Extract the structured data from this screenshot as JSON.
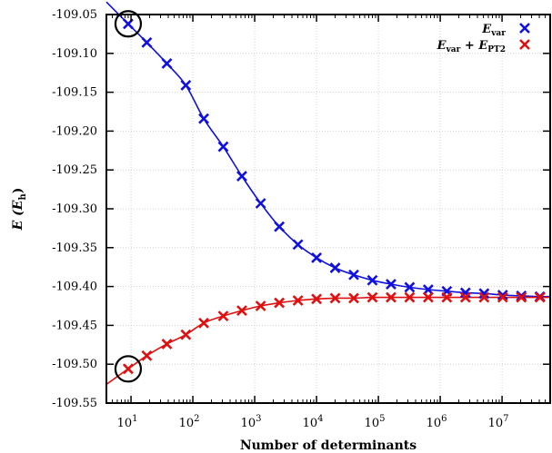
{
  "chart_data": {
    "type": "scatter",
    "xscale": "log",
    "xlim": [
      4,
      60000000
    ],
    "ylim": [
      -109.55,
      -109.05
    ],
    "grid": true,
    "legend_position": "top-right",
    "xlabel": "Number of determinants",
    "ylabel": "E (Eh)",
    "x_ticks": [
      10,
      100,
      1000,
      10000,
      100000,
      1000000,
      10000000
    ],
    "x_tick_labels": [
      {
        "base": "10",
        "exp": "1"
      },
      {
        "base": "10",
        "exp": "2"
      },
      {
        "base": "10",
        "exp": "3"
      },
      {
        "base": "10",
        "exp": "4"
      },
      {
        "base": "10",
        "exp": "5"
      },
      {
        "base": "10",
        "exp": "6"
      },
      {
        "base": "10",
        "exp": "7"
      }
    ],
    "y_ticks": [
      -109.05,
      -109.1,
      -109.15,
      -109.2,
      -109.25,
      -109.3,
      -109.35,
      -109.4,
      -109.45,
      -109.5,
      -109.55
    ],
    "y_tick_labels": [
      "-109.05",
      "-109.10",
      "-109.15",
      "-109.20",
      "-109.25",
      "-109.30",
      "-109.35",
      "-109.40",
      "-109.45",
      "-109.50",
      "-109.55"
    ],
    "series": [
      {
        "name": "E_var",
        "legend": {
          "main": "E",
          "sub": "var"
        },
        "color": "#1010e0",
        "marker": "x",
        "x": [
          9,
          18,
          38,
          77,
          150,
          310,
          620,
          1250,
          2500,
          5000,
          10000,
          20000,
          40000,
          80000,
          160000,
          320000,
          640000,
          1280000,
          2560000,
          5120000,
          10240000,
          20480000,
          40960000
        ],
        "y": [
          -109.062,
          -109.086,
          -109.113,
          -109.141,
          -109.184,
          -109.22,
          -109.258,
          -109.293,
          -109.323,
          -109.346,
          -109.363,
          -109.376,
          -109.385,
          -109.392,
          -109.397,
          -109.401,
          -109.404,
          -109.406,
          -109.408,
          -109.409,
          -109.411,
          -109.412,
          -109.413
        ]
      },
      {
        "name": "E_var + E_PT2",
        "legend": {
          "main": "E",
          "sub": "var",
          "plus": " + ",
          "main2": "E",
          "sub2": "PT2"
        },
        "color": "#e01010",
        "marker": "x",
        "x": [
          9,
          18,
          38,
          77,
          150,
          310,
          620,
          1250,
          2500,
          5000,
          10000,
          20000,
          40000,
          80000,
          160000,
          320000,
          640000,
          1280000,
          2560000,
          5120000,
          10240000,
          20480000,
          40960000
        ],
        "y": [
          -109.506,
          -109.489,
          -109.474,
          -109.462,
          -109.447,
          -109.438,
          -109.431,
          -109.425,
          -109.421,
          -109.418,
          -109.416,
          -109.415,
          -109.415,
          -109.414,
          -109.414,
          -109.414,
          -109.414,
          -109.414,
          -109.414,
          -109.414,
          -109.414,
          -109.414,
          -109.414
        ]
      }
    ],
    "annotations": [
      {
        "type": "circle",
        "x": 9,
        "y": -109.062
      },
      {
        "type": "circle",
        "x": 9,
        "y": -109.506
      }
    ]
  }
}
